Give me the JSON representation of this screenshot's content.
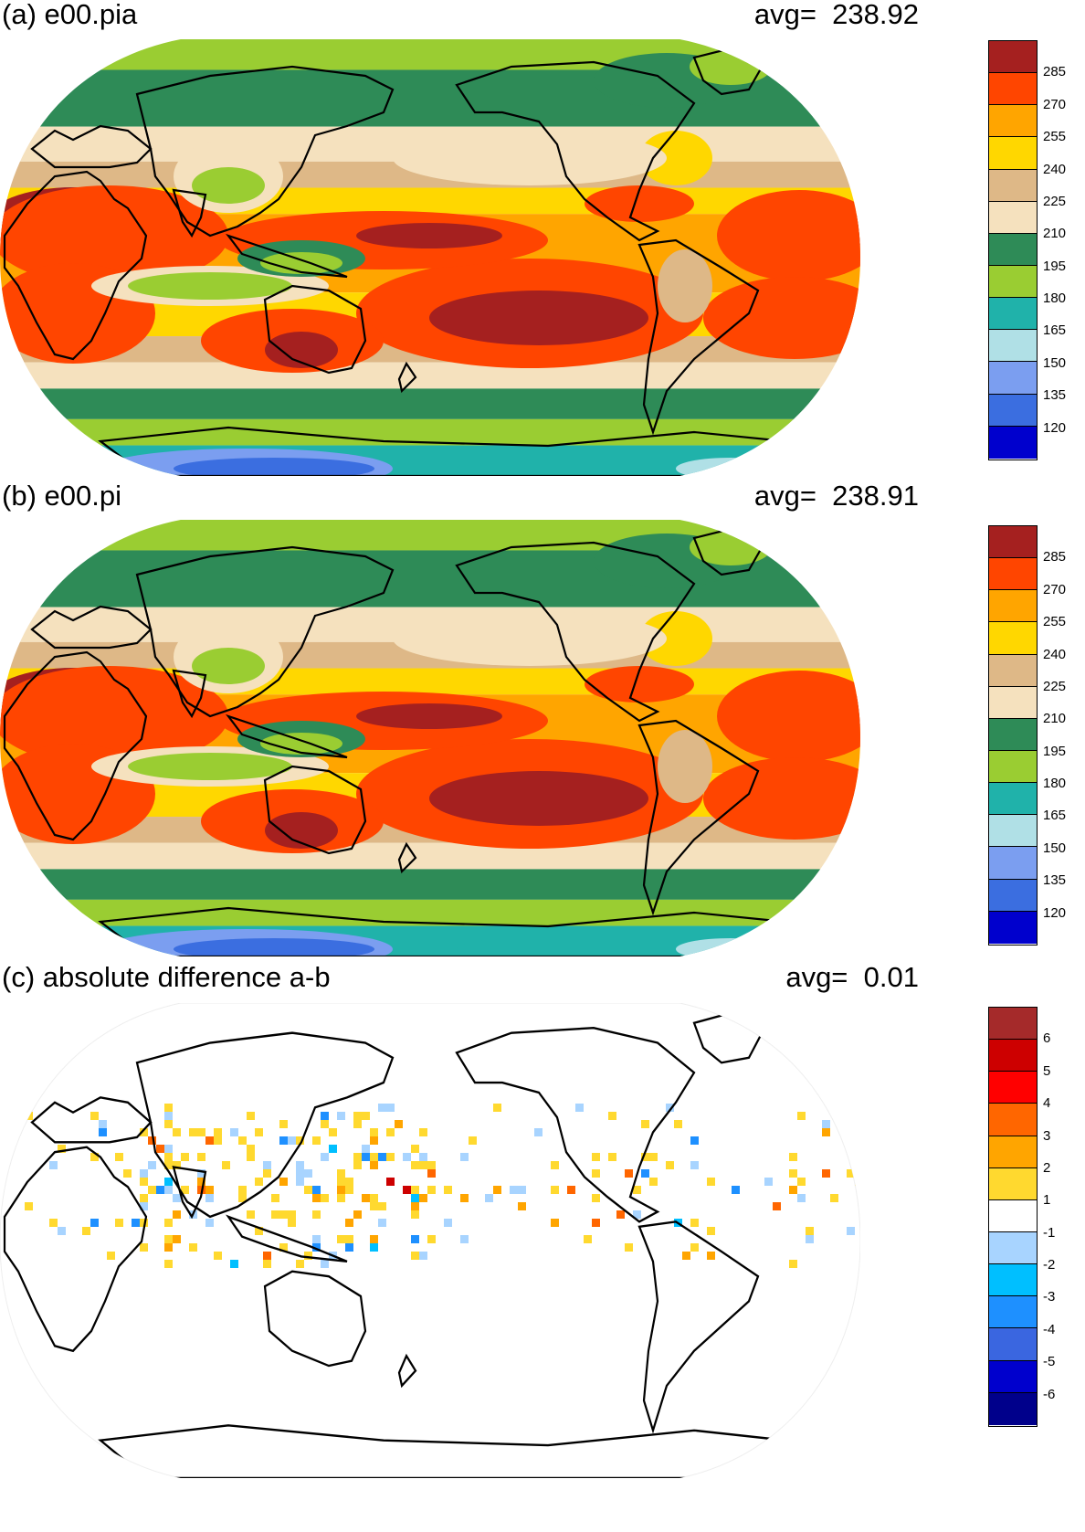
{
  "panels": [
    {
      "id": "a",
      "title": "(a) e00.pia",
      "avg_label": "avg=",
      "avg_value": "238.92",
      "colorbar": {
        "colors": [
          "#a5201f",
          "#ff4500",
          "#ffa500",
          "#ffd700",
          "#deb887",
          "#f5e1be",
          "#2e8b57",
          "#9acd32",
          "#20b2aa",
          "#b0e0e6",
          "#7b9ef0",
          "#3b6ee0",
          "#0000cd"
        ],
        "labels": [
          "285",
          "270",
          "255",
          "240",
          "225",
          "210",
          "195",
          "180",
          "165",
          "150",
          "135",
          "120"
        ]
      }
    },
    {
      "id": "b",
      "title": "(b) e00.pi",
      "avg_label": "avg=",
      "avg_value": "238.91",
      "colorbar": {
        "colors": [
          "#a5201f",
          "#ff4500",
          "#ffa500",
          "#ffd700",
          "#deb887",
          "#f5e1be",
          "#2e8b57",
          "#9acd32",
          "#20b2aa",
          "#b0e0e6",
          "#7b9ef0",
          "#3b6ee0",
          "#0000cd"
        ],
        "labels": [
          "285",
          "270",
          "255",
          "240",
          "225",
          "210",
          "195",
          "180",
          "165",
          "150",
          "135",
          "120"
        ]
      }
    },
    {
      "id": "c",
      "title": "(c) absolute difference a-b",
      "avg_label": "avg=",
      "avg_value": "0.01",
      "colorbar": {
        "colors": [
          "#a52a2a",
          "#cd0000",
          "#ff0000",
          "#ff6600",
          "#ffa500",
          "#ffd92f",
          "#ffffff",
          "#a8d4ff",
          "#00bfff",
          "#1e90ff",
          "#3a66e0",
          "#0000cd",
          "#00008b"
        ],
        "labels": [
          "6",
          "5",
          "4",
          "3",
          "2",
          "1",
          "-1",
          "-2",
          "-3",
          "-4",
          "-5",
          "-6"
        ]
      }
    }
  ],
  "icons": {
    "coastline": "coastline-outline",
    "globe": "robinson-projection-globe"
  }
}
